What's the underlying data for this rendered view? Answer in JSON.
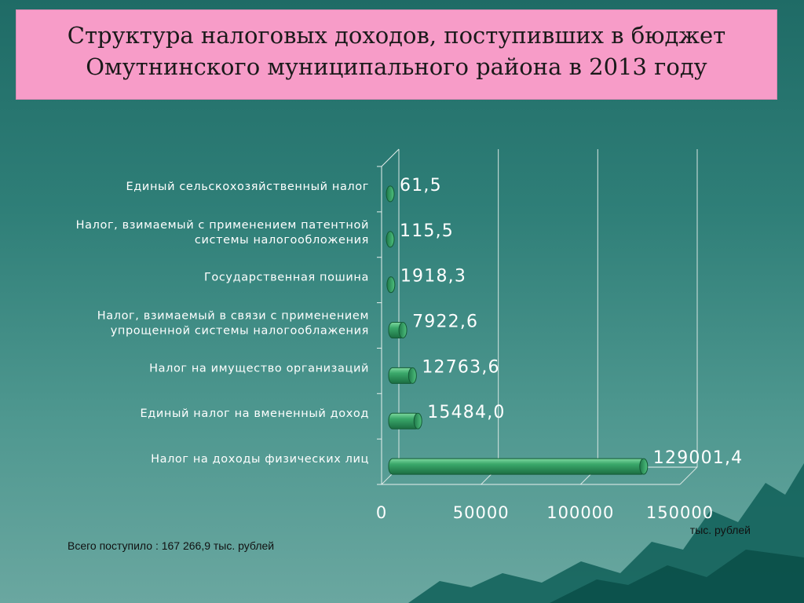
{
  "slide": {
    "title_line1": "Структура налоговых доходов, поступивших в бюджет",
    "title_line2": "Омутнинского муниципального района в 2013 году",
    "total_note": "Всего поступило : 167 266,9 тыс. рублей"
  },
  "chart_data": {
    "type": "bar",
    "orientation": "horizontal",
    "categories": [
      [
        "Единый сельскохозяйственный налог"
      ],
      [
        "Налог, взимаемый с применением патентной",
        "системы налогообложения"
      ],
      [
        "Государственная пошина"
      ],
      [
        "Налог, взимаемый в связи с применением",
        "упрощенной системы налогооблажения"
      ],
      [
        "Налог на имущество организаций"
      ],
      [
        "Единый налог на вмененный доход"
      ],
      [
        "Налог на доходы физических лиц"
      ]
    ],
    "values": [
      61.5,
      115.5,
      1918.3,
      7922.6,
      12763.6,
      15484.0,
      129001.4
    ],
    "value_labels": [
      "61,5",
      "115,5",
      "1918,3",
      "7922,6",
      "12763,6",
      "15484,0",
      "129001,4"
    ],
    "xlim": [
      0,
      150000
    ],
    "x_ticks": [
      0,
      50000,
      100000,
      150000
    ],
    "x_tick_labels": [
      "0",
      "50000",
      "100000",
      "150000"
    ],
    "xlabel": "тыс. рублей",
    "grid": true,
    "bar_color": "#2e9a5c"
  }
}
